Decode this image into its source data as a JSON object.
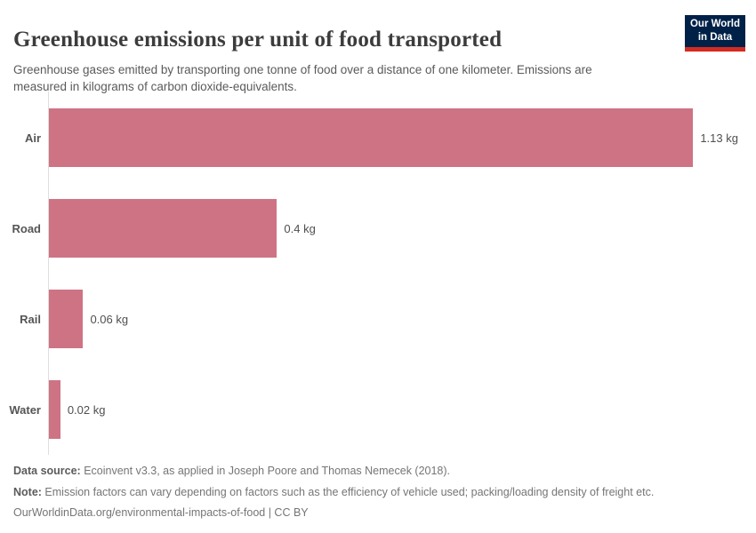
{
  "header": {
    "title": "Greenhouse emissions per unit of food transported",
    "subtitle": "Greenhouse gases emitted by transporting one tonne of food over a distance of one kilometer. Emissions are\nmeasured in kilograms of carbon dioxide-equivalents."
  },
  "logo": {
    "line1": "Our World",
    "line2": "in Data"
  },
  "chart_data": {
    "type": "bar",
    "orientation": "horizontal",
    "title": "Greenhouse emissions per unit of food transported",
    "categories": [
      "Air",
      "Road",
      "Rail",
      "Water"
    ],
    "values": [
      1.13,
      0.4,
      0.06,
      0.02
    ],
    "value_labels": [
      "1.13 kg",
      "0.4 kg",
      "0.06 kg",
      "0.02 kg"
    ],
    "unit": "kg",
    "xlim": [
      0,
      1.24
    ],
    "grid": false,
    "legend": "none",
    "value_label_position": "end-of-bar"
  },
  "colors": {
    "bar": "#ce7384",
    "axis_line": "#dedede",
    "logo_bg": "#002147",
    "logo_stripe": "#d42b21",
    "title_text": "#3c3c3c"
  },
  "footer": {
    "data_source_label": "Data source:",
    "data_source_text": " Ecoinvent v3.3, as applied in Joseph Poore and Thomas Nemecek (2018).",
    "note_label": "Note:",
    "note_text": " Emission factors can vary depending on factors such as the efficiency of vehicle used; packing/loading density of freight etc.",
    "citation": "OurWorldinData.org/environmental-impacts-of-food | CC BY"
  }
}
